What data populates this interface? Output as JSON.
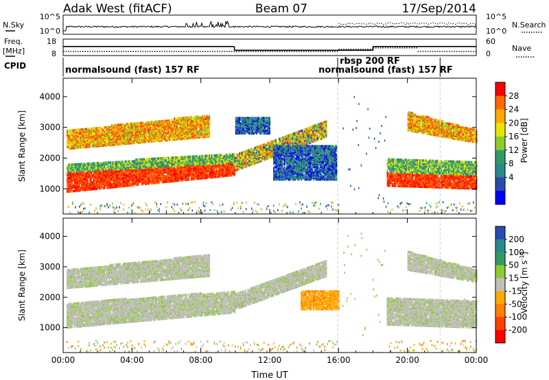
{
  "header": {
    "station": "Adak West (fitACF)",
    "beam": "Beam 07",
    "date": "17/Sep/2014"
  },
  "noise_panel": {
    "left_label": "N.Sky",
    "right_label": "N.Search",
    "left_ticks": [
      "10^5",
      "10^0"
    ],
    "right_ticks": [
      "10^5",
      "10^0"
    ]
  },
  "freq_panel": {
    "left_label_line1": "Freq.",
    "left_label_line2": "[MHz]",
    "left_ticks": [
      "18",
      "8"
    ],
    "right_label": "Nave",
    "right_ticks": [
      "60",
      "0"
    ],
    "freq_mhz": [
      {
        "t0": 0.0,
        "t1": 9.95,
        "value": 13.5
      },
      {
        "t0": 9.95,
        "t1": 18.0,
        "value": 11.2
      },
      {
        "t0": 18.0,
        "t1": 24.0,
        "value": 13.5
      }
    ],
    "nave": [
      {
        "t0": 0.0,
        "t1": 16.0,
        "value": 15
      },
      {
        "t0": 16.0,
        "t1": 18.0,
        "value": 23
      },
      {
        "t0": 18.0,
        "t1": 20.6,
        "value": 28
      },
      {
        "t0": 20.6,
        "t1": 24.0,
        "value": 15
      }
    ]
  },
  "cpid": {
    "label": "CPID",
    "segments": [
      {
        "t": 0.0,
        "text": "normalsound (fast) 157 RF"
      },
      {
        "t": 15.95,
        "text": "rbsp 200 RF"
      },
      {
        "t": 15.95,
        "text": "normalsound (fast) 157 RF"
      }
    ],
    "boundaries": [
      15.95,
      21.9
    ]
  },
  "chart_data": [
    {
      "type": "heatmap",
      "name": "Power",
      "xlabel": "",
      "ylabel": "Slant Range [km]",
      "xlim": [
        0,
        24
      ],
      "ylim": [
        180,
        4600
      ],
      "xticks": [
        "00:00",
        "04:00",
        "08:00",
        "12:00",
        "16:00",
        "20:00",
        "00:00"
      ],
      "yticks": [
        1000,
        2000,
        3000,
        4000
      ],
      "colorbar": {
        "label": "Power [dB]",
        "ticks": [
          "28",
          "24",
          "20",
          "16",
          "12",
          "8",
          "4"
        ],
        "colors": [
          "#ff0000",
          "#ff6a00",
          "#ffaa00",
          "#e6e600",
          "#8ccc33",
          "#339966",
          "#2a8a8a",
          "#2a4ab0",
          "#0000ff"
        ]
      },
      "bands": [
        {
          "t0": 0.2,
          "t1": 10.0,
          "r0_start": 900,
          "r1_start": 1550,
          "r0_end": 1450,
          "r1_end": 2000,
          "level": "red"
        },
        {
          "t0": 0.2,
          "t1": 10.0,
          "r0_start": 1550,
          "r1_start": 1800,
          "r0_end": 1850,
          "r1_end": 2150,
          "level": "green"
        },
        {
          "t0": 0.2,
          "t1": 8.5,
          "r0_start": 2300,
          "r1_start": 2900,
          "r0_end": 2700,
          "r1_end": 3400,
          "level": "orange"
        },
        {
          "t0": 10.0,
          "t1": 15.3,
          "r0_start": 1600,
          "r1_start": 2100,
          "r0_end": 2700,
          "r1_end": 3200,
          "level": "mixed"
        },
        {
          "t0": 10.0,
          "t1": 12.0,
          "r0_start": 2800,
          "r1_start": 3300,
          "r0_end": 2800,
          "r1_end": 3300,
          "level": "blue"
        },
        {
          "t0": 12.2,
          "t1": 15.9,
          "r0_start": 1300,
          "r1_start": 2400,
          "r0_end": 1300,
          "r1_end": 2400,
          "level": "blue"
        },
        {
          "t0": 18.8,
          "t1": 24.0,
          "r0_start": 1100,
          "r1_start": 1550,
          "r0_end": 1000,
          "r1_end": 1450,
          "level": "red"
        },
        {
          "t0": 18.8,
          "t1": 24.0,
          "r0_start": 1550,
          "r1_start": 2000,
          "r0_end": 1450,
          "r1_end": 1900,
          "level": "green"
        },
        {
          "t0": 20.0,
          "t1": 24.0,
          "r0_start": 2900,
          "r1_start": 3500,
          "r0_end": 2500,
          "r1_end": 2900,
          "level": "orange"
        }
      ]
    },
    {
      "type": "heatmap",
      "name": "Velocity",
      "xlabel": "Time UT",
      "ylabel": "Slant Range [km]",
      "xlim": [
        0,
        24
      ],
      "ylim": [
        180,
        4600
      ],
      "xticks": [
        "00:00",
        "04:00",
        "08:00",
        "12:00",
        "16:00",
        "20:00",
        "00:00"
      ],
      "yticks": [
        1000,
        2000,
        3000,
        4000
      ],
      "colorbar": {
        "label": "Velocity [m s",
        "label_sup": "-1",
        "label_end": "]",
        "ticks": [
          "200",
          "100",
          "50",
          "15",
          "-15",
          "-50",
          "-100",
          "-200"
        ],
        "colors": [
          "#2a4ab0",
          "#2a8a8a",
          "#339966",
          "#8ccc33",
          "#c0c0b8",
          "#ffaa00",
          "#ff8000",
          "#ff4000",
          "#ff0000"
        ]
      },
      "bands": [
        {
          "t0": 0.2,
          "t1": 10.0,
          "r0_start": 1000,
          "r1_start": 1800,
          "r0_end": 1500,
          "r1_end": 2200,
          "level": "grey"
        },
        {
          "t0": 0.2,
          "t1": 8.5,
          "r0_start": 2300,
          "r1_start": 2900,
          "r0_end": 2700,
          "r1_end": 3400,
          "level": "grey"
        },
        {
          "t0": 10.0,
          "t1": 15.3,
          "r0_start": 1600,
          "r1_start": 2100,
          "r0_end": 2700,
          "r1_end": 3200,
          "level": "grey"
        },
        {
          "t0": 13.8,
          "t1": 16.0,
          "r0_start": 1600,
          "r1_start": 2200,
          "r0_end": 1600,
          "r1_end": 2200,
          "level": "orange"
        },
        {
          "t0": 18.8,
          "t1": 24.0,
          "r0_start": 1100,
          "r1_start": 2000,
          "r0_end": 1000,
          "r1_end": 1900,
          "level": "grey"
        },
        {
          "t0": 20.0,
          "t1": 24.0,
          "r0_start": 2900,
          "r1_start": 3500,
          "r0_end": 2500,
          "r1_end": 2900,
          "level": "grey"
        }
      ]
    }
  ]
}
